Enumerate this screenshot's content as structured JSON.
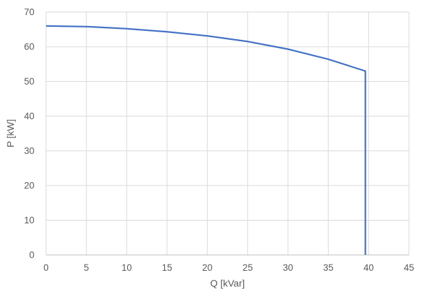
{
  "chart_data": {
    "type": "line",
    "title": "",
    "xlabel": "Q [kVar]",
    "ylabel": "P [kW]",
    "x": [
      0,
      5,
      10,
      15,
      20,
      25,
      30,
      35,
      39.6,
      39.6
    ],
    "y": [
      66,
      65.8,
      65.2,
      64.3,
      63.1,
      61.5,
      59.3,
      56.4,
      53,
      0
    ],
    "xlim": [
      0,
      45
    ],
    "ylim": [
      0,
      70
    ],
    "xticks": [
      0,
      5,
      10,
      15,
      20,
      25,
      30,
      35,
      40,
      45
    ],
    "yticks": [
      0,
      10,
      20,
      30,
      40,
      50,
      60,
      70
    ],
    "grid": true,
    "legend": "none",
    "colors": {
      "line": "#4472C4",
      "gridline": "#D9D9D9",
      "axis_line": "#BFBFBF",
      "tick_label": "#595959",
      "axis_title": "#595959",
      "background": "#FFFFFF"
    }
  }
}
